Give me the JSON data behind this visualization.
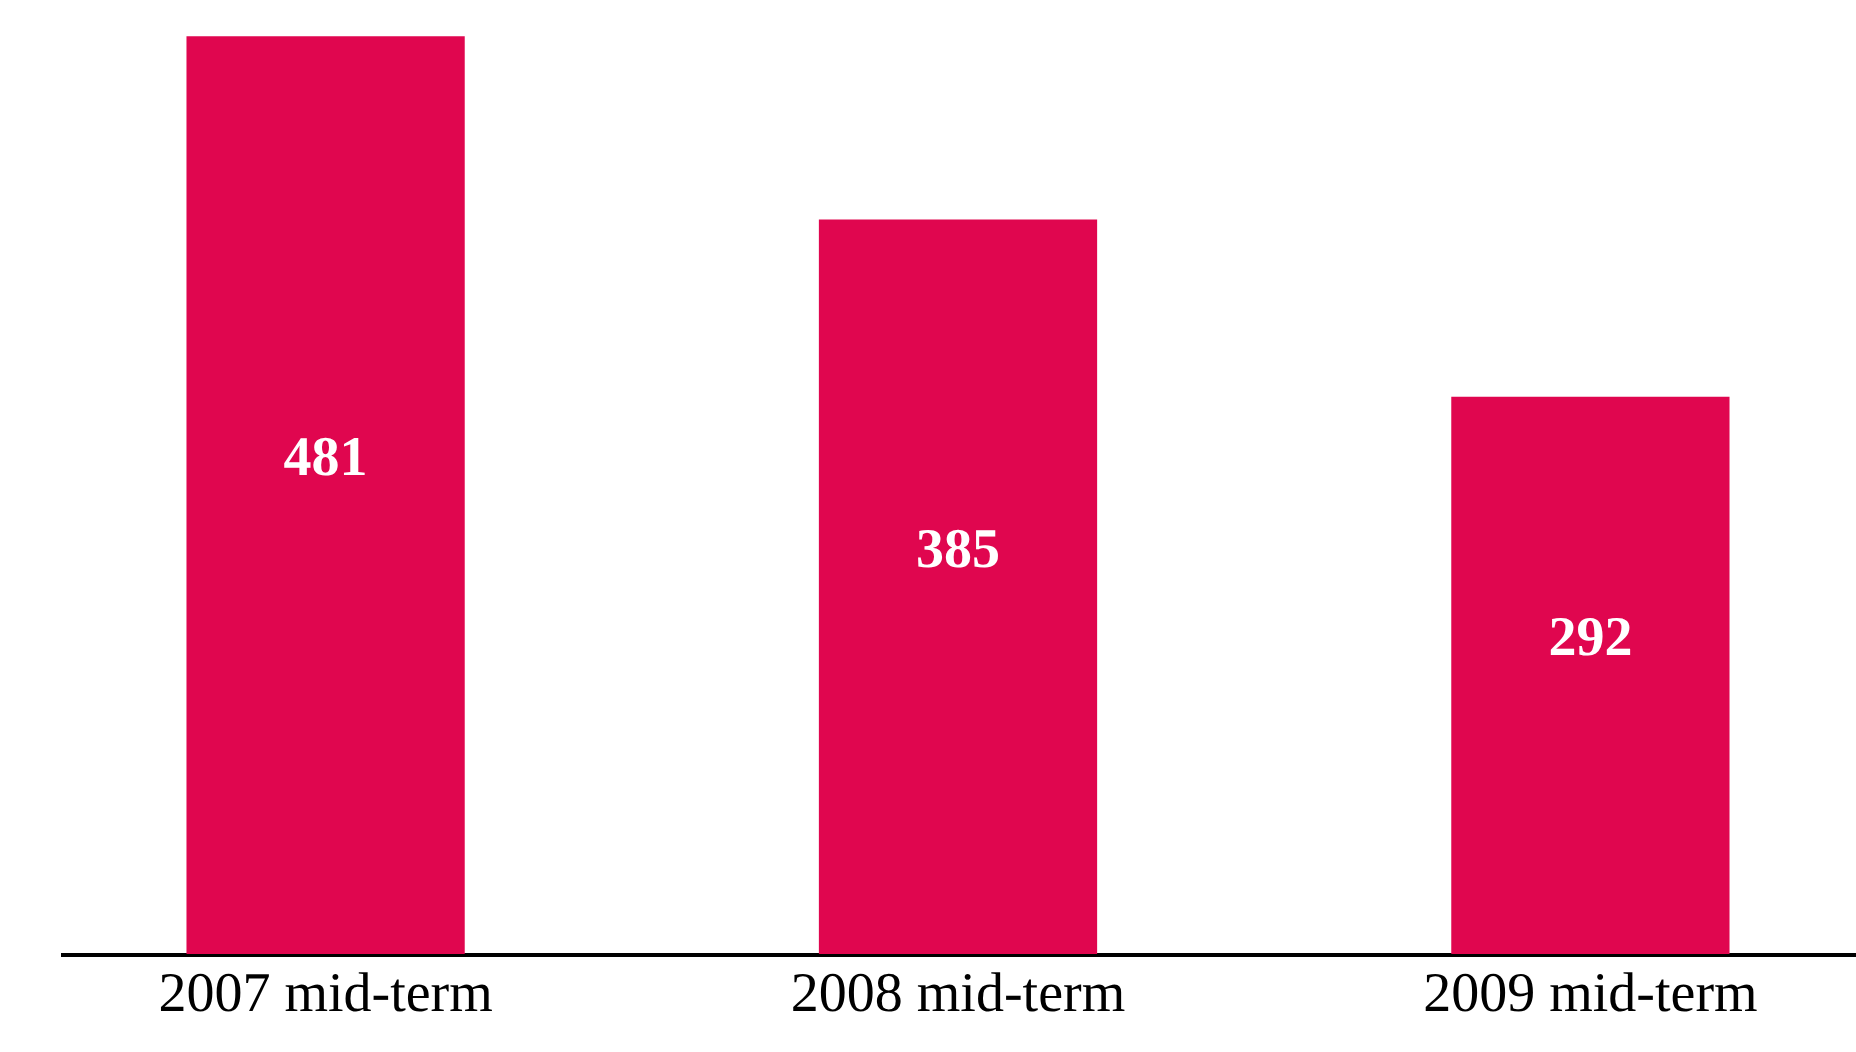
{
  "chart_data": {
    "type": "bar",
    "categories": [
      "2007 mid-term",
      "2008 mid-term",
      "2009 mid-term"
    ],
    "values": [
      481,
      385,
      292
    ],
    "color": "#e0064f",
    "ylim": [
      0,
      500
    ],
    "data_labels": true
  }
}
